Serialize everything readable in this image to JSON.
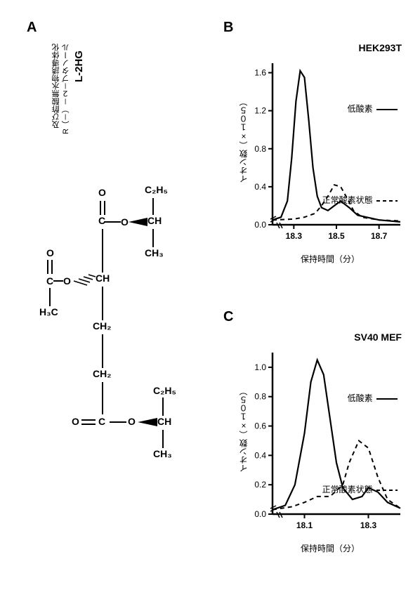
{
  "panel_a": {
    "label": "A",
    "title": "L-2HG",
    "subtitle_line1": "R（－）－２－ブタノール",
    "subtitle_line2": "及び酢酸無水物誘導体化",
    "atoms": {
      "c2h5_top": "C₂H₅",
      "ch_top": "CH",
      "ch3_top": "CH₃",
      "o_dbl_1": "O",
      "c_1": "C",
      "o_sgl_1": "O",
      "h3c": "H₃C",
      "c_ac": "C",
      "o_ac_dbl": "O",
      "o_ac_sgl": "O",
      "ch_mid": "CH",
      "ch2_1": "CH₂",
      "ch2_2": "CH₂",
      "c_bot": "C",
      "o_dbl_bot": "O",
      "o_sgl_bot": "O",
      "ch_bot": "CH",
      "c2h5_bot": "C₂H₅",
      "ch3_bot": "CH₃"
    },
    "label_fontsize": 20,
    "title_fontsize": 15,
    "subtitle_fontsize": 11,
    "atom_fontsize": 14,
    "atom_fontweight": "bold"
  },
  "panel_b": {
    "label": "B",
    "title": "HEK293T",
    "ylabel": "イオン数（×１０５）",
    "xlabel": "保持時間（分）",
    "legend_solid": "低酸素",
    "legend_dashed": "正常酸素状態",
    "xlim": [
      18.2,
      18.8
    ],
    "ylim": [
      0,
      1.7
    ],
    "xticks": [
      18.3,
      18.5,
      18.7
    ],
    "yticks": [
      0,
      0.4,
      0.8,
      1.2,
      1.6
    ],
    "series_solid": {
      "x": [
        18.2,
        18.24,
        18.27,
        18.29,
        18.31,
        18.33,
        18.35,
        18.37,
        18.39,
        18.41,
        18.43,
        18.46,
        18.49,
        18.52,
        18.56,
        18.6,
        18.7,
        18.8
      ],
      "y": [
        0.05,
        0.08,
        0.25,
        0.7,
        1.3,
        1.62,
        1.55,
        1.1,
        0.6,
        0.3,
        0.18,
        0.15,
        0.2,
        0.25,
        0.18,
        0.1,
        0.05,
        0.03
      ],
      "color": "#000000",
      "width": 2.2
    },
    "series_dashed": {
      "x": [
        18.2,
        18.3,
        18.35,
        18.4,
        18.43,
        18.46,
        18.49,
        18.52,
        18.55,
        18.58,
        18.62,
        18.7,
        18.8
      ],
      "y": [
        0.05,
        0.06,
        0.08,
        0.12,
        0.2,
        0.3,
        0.42,
        0.4,
        0.28,
        0.15,
        0.08,
        0.05,
        0.04
      ],
      "color": "#000000",
      "width": 2.0,
      "dash": "6,5"
    },
    "label_fontsize": 20,
    "title_fontsize": 14,
    "axis_fontsize": 12,
    "tick_fontsize": 12,
    "legend_fontsize": 12
  },
  "panel_c": {
    "label": "C",
    "title": "SV40 MEF",
    "ylabel": "イオン数（×１０５）",
    "xlabel": "保持時間（分）",
    "legend_solid": "低酸素",
    "legend_dashed": "正常酸素状態",
    "xlim": [
      18.0,
      18.4
    ],
    "ylim": [
      0,
      1.1
    ],
    "xticks": [
      18.1,
      18.3
    ],
    "yticks": [
      0,
      0.2,
      0.4,
      0.6,
      0.8,
      1.0
    ],
    "series_solid": {
      "x": [
        18.0,
        18.04,
        18.07,
        18.1,
        18.12,
        18.14,
        18.16,
        18.18,
        18.2,
        18.22,
        18.25,
        18.28,
        18.3,
        18.33,
        18.36,
        18.4
      ],
      "y": [
        0.03,
        0.06,
        0.2,
        0.55,
        0.9,
        1.05,
        0.95,
        0.65,
        0.35,
        0.18,
        0.1,
        0.12,
        0.18,
        0.15,
        0.08,
        0.04
      ],
      "color": "#000000",
      "width": 2.2
    },
    "series_dashed": {
      "x": [
        18.0,
        18.06,
        18.1,
        18.14,
        18.18,
        18.22,
        18.24,
        18.27,
        18.3,
        18.33,
        18.36,
        18.4
      ],
      "y": [
        0.03,
        0.05,
        0.08,
        0.12,
        0.12,
        0.2,
        0.35,
        0.5,
        0.45,
        0.25,
        0.1,
        0.04
      ],
      "color": "#000000",
      "width": 2.0,
      "dash": "6,5"
    },
    "label_fontsize": 20,
    "title_fontsize": 14,
    "axis_fontsize": 12,
    "tick_fontsize": 12,
    "legend_fontsize": 12
  },
  "colors": {
    "bg": "#ffffff",
    "fg": "#000000"
  }
}
